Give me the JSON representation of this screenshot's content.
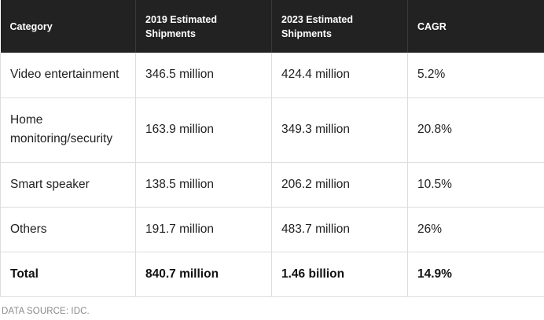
{
  "table": {
    "headers": [
      {
        "line1": "Category",
        "line2": ""
      },
      {
        "line1": "2019 Estimated",
        "line2": "Shipments"
      },
      {
        "line1": "2023 Estimated",
        "line2": "Shipments"
      },
      {
        "line1": "CAGR",
        "line2": ""
      }
    ],
    "rows": [
      {
        "category": "Video entertainment",
        "category_line2": "",
        "y2019": "346.5 million",
        "y2023": "424.4 million",
        "cagr": "5.2%"
      },
      {
        "category": "Home",
        "category_line2": "monitoring/security",
        "y2019": "163.9 million",
        "y2023": "349.3 million",
        "cagr": "20.8%"
      },
      {
        "category": "Smart speaker",
        "category_line2": "",
        "y2019": "138.5 million",
        "y2023": "206.2 million",
        "cagr": "10.5%"
      },
      {
        "category": "Others",
        "category_line2": "",
        "y2019": "191.7 million",
        "y2023": "483.7 million",
        "cagr": "26%"
      }
    ],
    "total": {
      "category": "Total",
      "y2019": "840.7 million",
      "y2023": "1.46 billion",
      "cagr": "14.9%"
    }
  },
  "source_note": "DATA SOURCE: IDC."
}
